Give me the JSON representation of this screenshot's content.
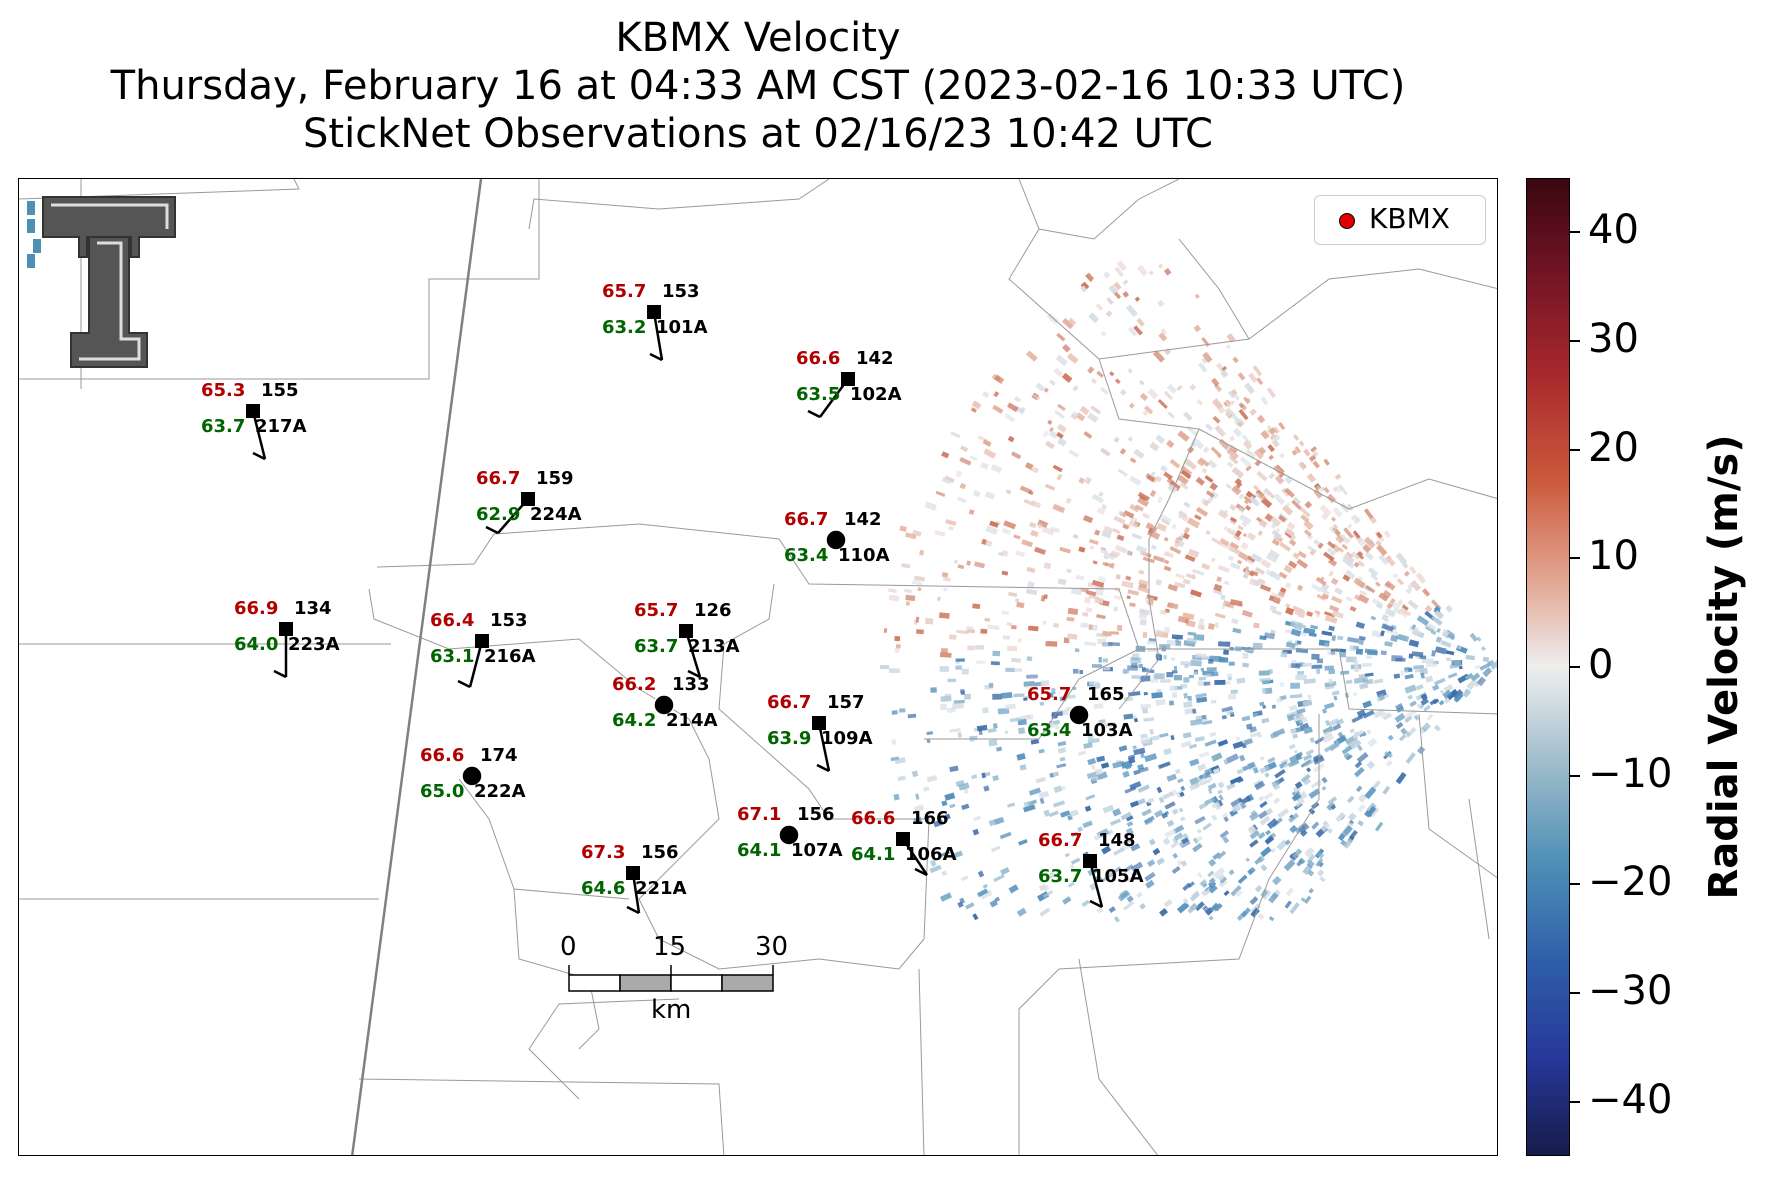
{
  "header": {
    "title": "KBMX Velocity",
    "subtitle": "Thursday, February 16 at 04:33 AM CST (2023-02-16 10:33 UTC)",
    "obs_line": "StickNet Observations at 02/16/23 10:42 UTC"
  },
  "legend": {
    "label": "KBMX",
    "marker_color": "#e00000"
  },
  "colorbar": {
    "label": "Radial Velocity (m/s)",
    "ticks": [
      "40",
      "30",
      "20",
      "10",
      "0",
      "−10",
      "−20",
      "−30",
      "−40"
    ],
    "range": [
      -45,
      45
    ],
    "colors": [
      "#3a0810",
      "#a8282c",
      "#e2a592",
      "#eeeeee",
      "#9ebccb",
      "#4e8fb6",
      "#27389a",
      "#161c4a"
    ]
  },
  "scale_bar": {
    "labels": [
      "0",
      "15",
      "30"
    ],
    "unit": "km"
  },
  "logo": {
    "icon": "texas-tech-double-t-logo",
    "text": "TT"
  },
  "stations": [
    {
      "id": "101A",
      "temp": "65.7",
      "dew": "63.2",
      "pres": "153",
      "marker": "square"
    },
    {
      "id": "102A",
      "temp": "66.6",
      "dew": "63.5",
      "pres": "142",
      "marker": "square"
    },
    {
      "id": "217A",
      "temp": "65.3",
      "dew": "63.7",
      "pres": "155",
      "marker": "square"
    },
    {
      "id": "224A",
      "temp": "66.7",
      "dew": "62.9",
      "pres": "159",
      "marker": "square"
    },
    {
      "id": "110A",
      "temp": "66.7",
      "dew": "63.4",
      "pres": "142",
      "marker": "circle"
    },
    {
      "id": "223A",
      "temp": "66.9",
      "dew": "64.0",
      "pres": "134",
      "marker": "square"
    },
    {
      "id": "216A",
      "temp": "66.4",
      "dew": "63.1",
      "pres": "153",
      "marker": "square"
    },
    {
      "id": "213A",
      "temp": "65.7",
      "dew": "63.7",
      "pres": "126",
      "marker": "square"
    },
    {
      "id": "214A",
      "temp": "66.2",
      "dew": "64.2",
      "pres": "133",
      "marker": "circle"
    },
    {
      "id": "109A",
      "temp": "66.7",
      "dew": "63.9",
      "pres": "157",
      "marker": "square"
    },
    {
      "id": "103A",
      "temp": "65.7",
      "dew": "63.4",
      "pres": "165",
      "marker": "circle"
    },
    {
      "id": "222A",
      "temp": "66.6",
      "dew": "65.0",
      "pres": "174",
      "marker": "circle"
    },
    {
      "id": "107A",
      "temp": "67.1",
      "dew": "64.1",
      "pres": "156",
      "marker": "circle"
    },
    {
      "id": "106A",
      "temp": "66.6",
      "dew": "64.1",
      "pres": "166",
      "marker": "square"
    },
    {
      "id": "221A",
      "temp": "67.3",
      "dew": "64.6",
      "pres": "156",
      "marker": "square"
    },
    {
      "id": "105A",
      "temp": "66.7",
      "dew": "63.7",
      "pres": "148",
      "marker": "square"
    }
  ]
}
